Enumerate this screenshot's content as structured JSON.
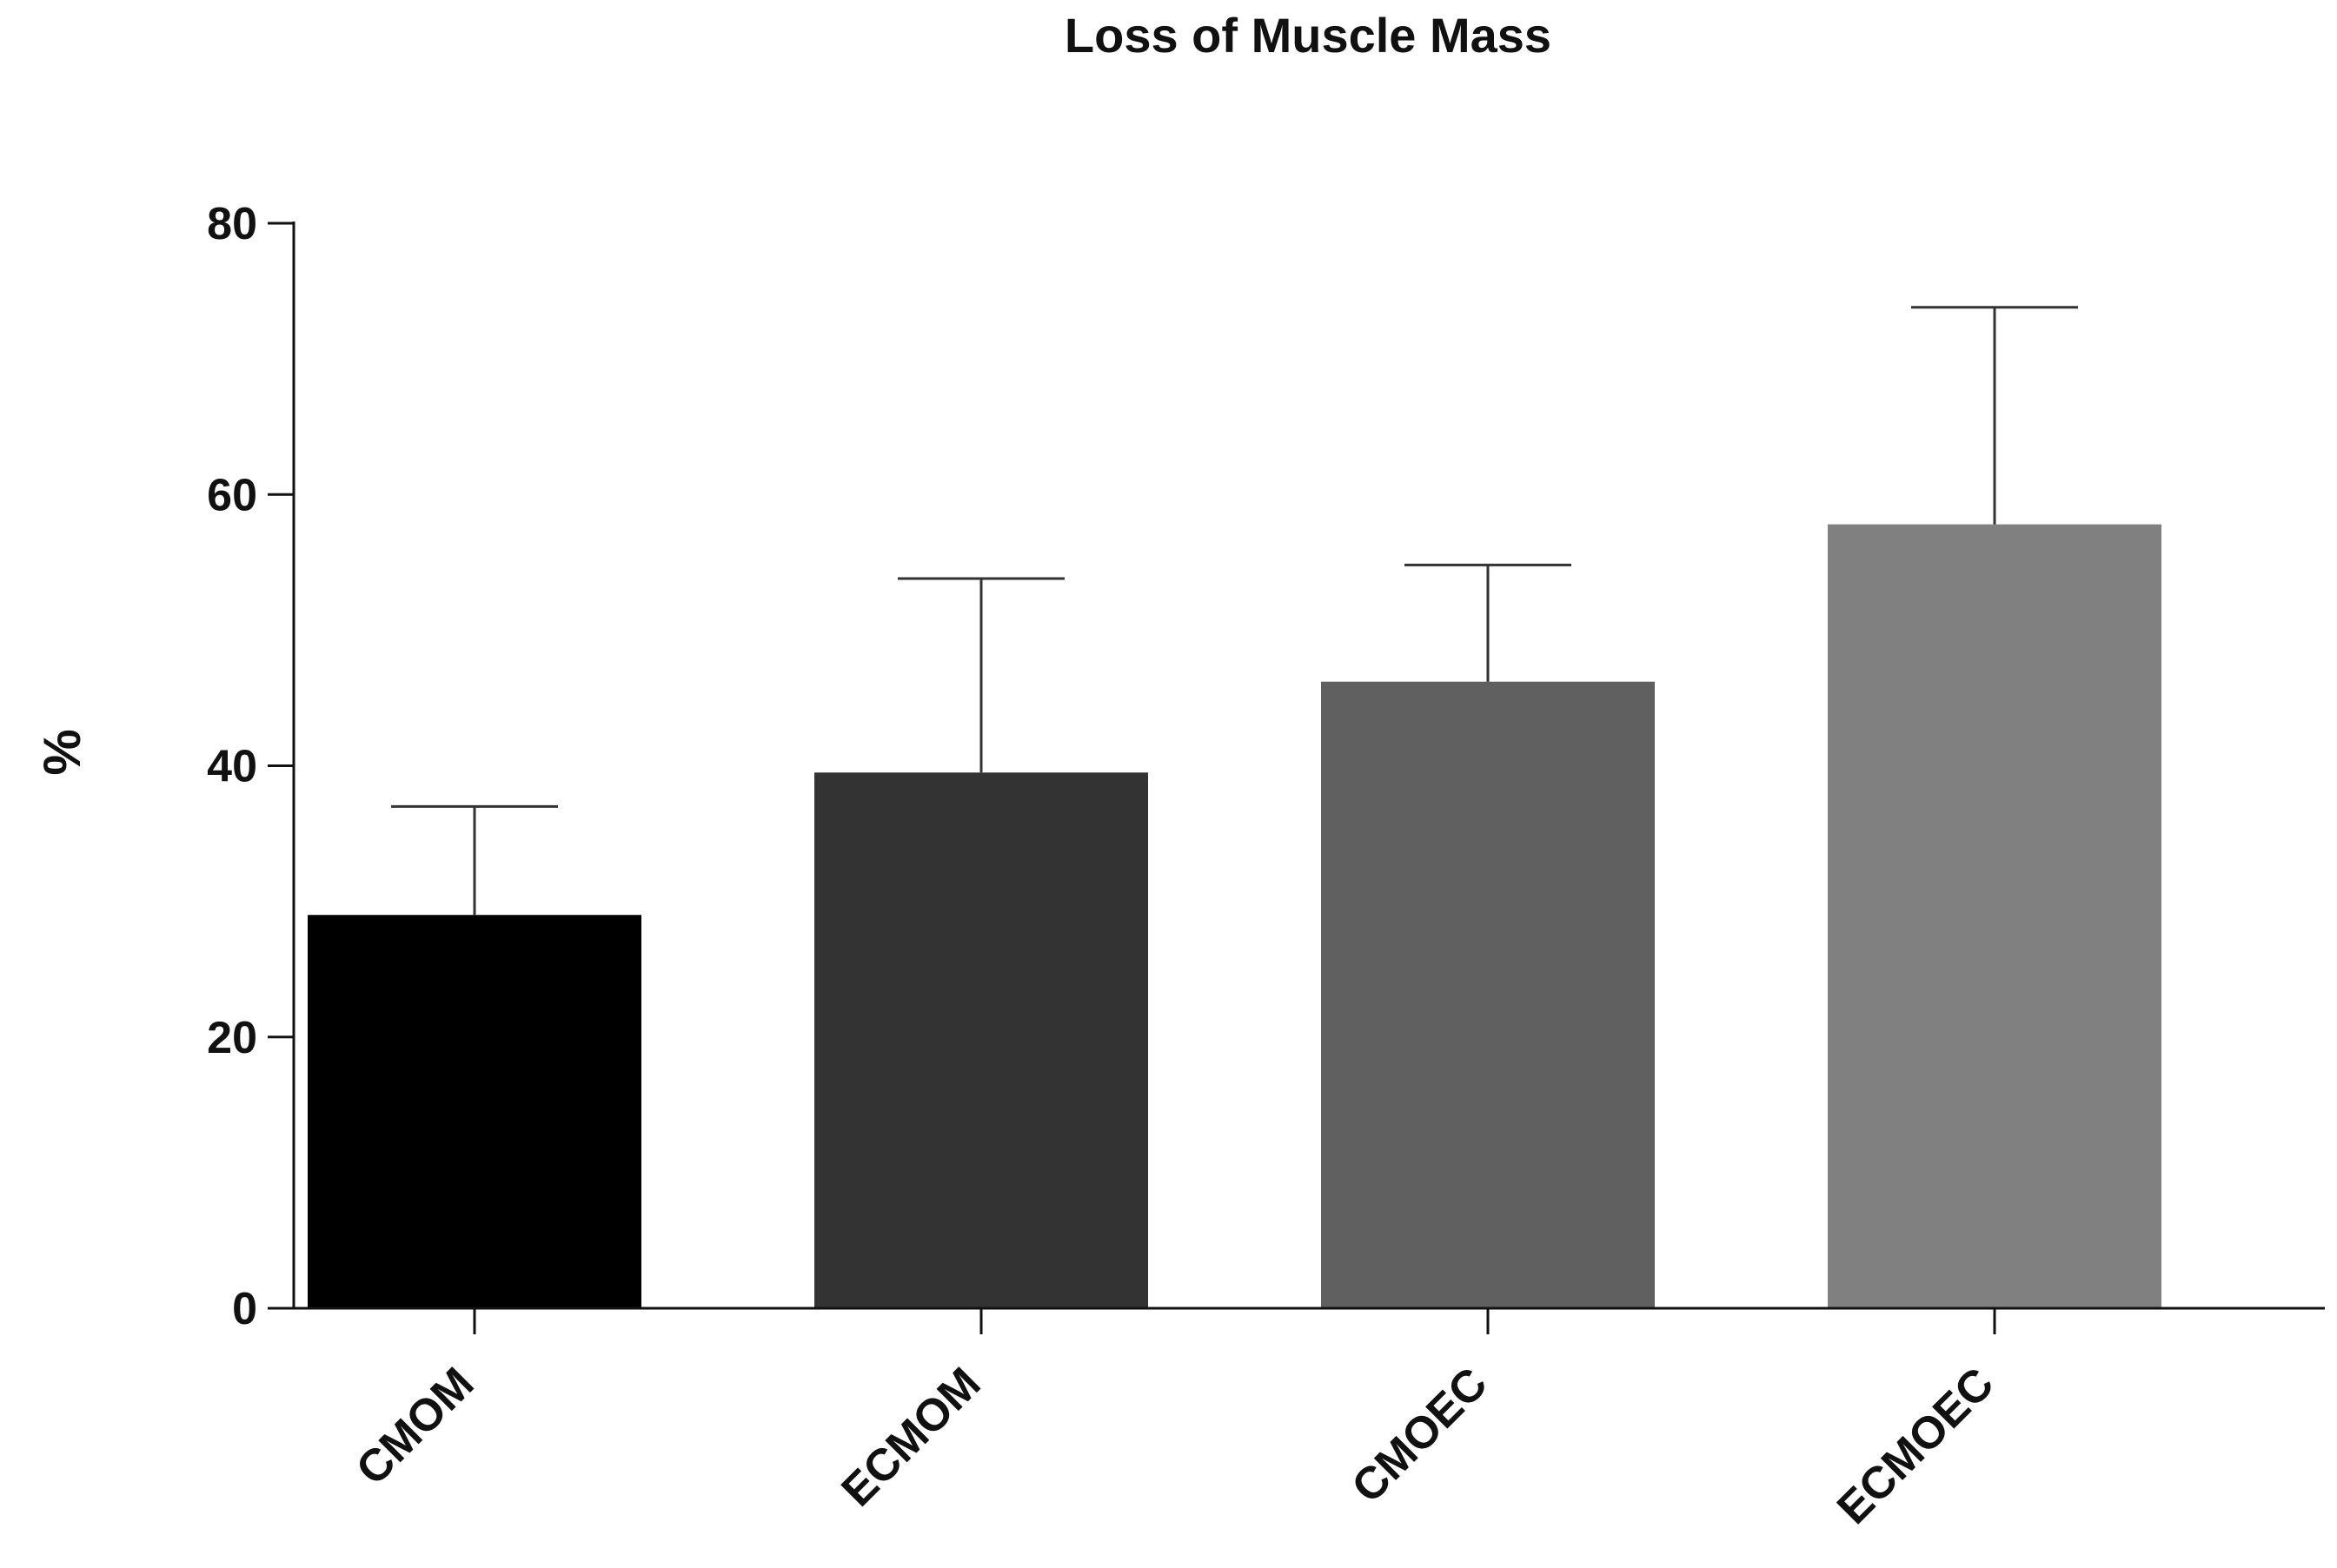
{
  "chart_data": {
    "type": "bar",
    "title": "Loss of Muscle Mass",
    "xlabel": "",
    "ylabel": "%",
    "categories": [
      "CMOM",
      "ECMOM",
      "CMOEC",
      "ECMOEC"
    ],
    "values": [
      29,
      39.5,
      46.2,
      57.8
    ],
    "error_upper": [
      37,
      53.8,
      54.8,
      73.8
    ],
    "bar_colors": [
      "#000000",
      "#333333",
      "#606060",
      "#808080"
    ],
    "ylim": [
      0,
      80
    ],
    "yticks": [
      0,
      20,
      40,
      60,
      80
    ],
    "ytick_labels": [
      "0",
      "20",
      "40",
      "60",
      "80"
    ],
    "grid": false,
    "legend": "none"
  }
}
